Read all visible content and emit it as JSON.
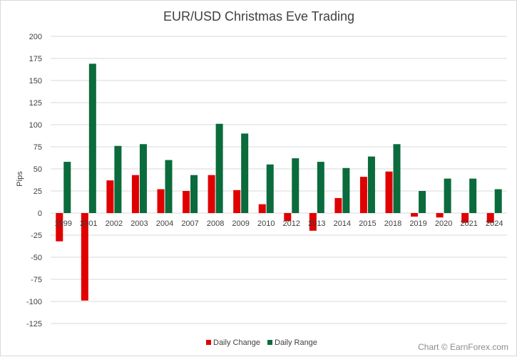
{
  "chart_data": {
    "type": "bar",
    "title": "EUR/USD Christmas Eve Trading",
    "ylabel": "Pips",
    "xlabel": "",
    "categories": [
      "1999",
      "2001",
      "2002",
      "2003",
      "2004",
      "2007",
      "2008",
      "2009",
      "2010",
      "2012",
      "2013",
      "2014",
      "2015",
      "2018",
      "2019",
      "2020",
      "2021",
      "2024"
    ],
    "series": [
      {
        "name": "Daily Change",
        "color": "#e00000",
        "values": [
          -32,
          -99,
          37,
          43,
          27,
          25,
          43,
          26,
          10,
          -9,
          -20,
          17,
          41,
          47,
          -4,
          -5,
          -11,
          -11
        ]
      },
      {
        "name": "Daily Range",
        "color": "#0a6b3c",
        "values": [
          58,
          169,
          76,
          78,
          60,
          43,
          101,
          90,
          55,
          62,
          58,
          51,
          64,
          78,
          25,
          39,
          39,
          27
        ]
      }
    ],
    "ylim": [
      -125,
      200
    ],
    "yticks": [
      200,
      175,
      150,
      125,
      100,
      75,
      50,
      25,
      0,
      -25,
      -50,
      -75,
      -100,
      -125
    ],
    "grid": true,
    "legend_position": "bottom"
  },
  "credit": "Chart © EarnForex.com",
  "colors": {
    "grid": "#d9d9d9",
    "text": "#404040",
    "credit": "#8c8c8c"
  }
}
